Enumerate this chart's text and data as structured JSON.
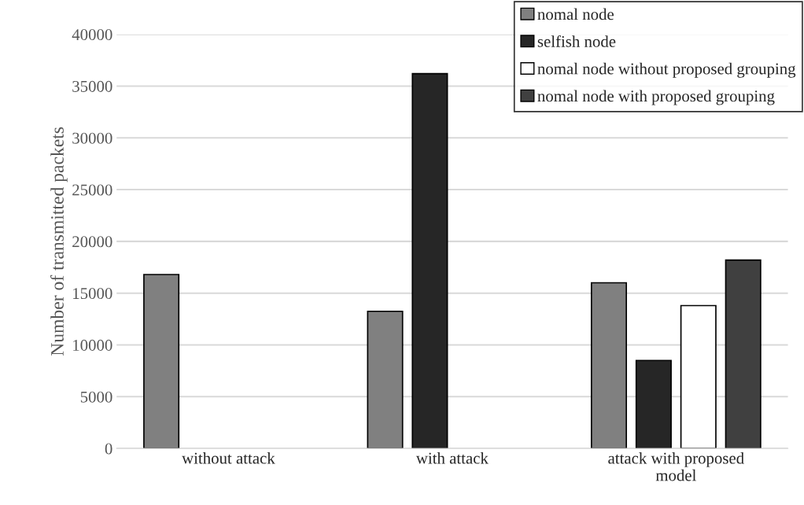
{
  "chart_data": {
    "type": "bar",
    "ylabel": "Number of transmitted packets",
    "categories": [
      "without attack",
      "with attack",
      "attack with proposed\nmodel"
    ],
    "series": [
      {
        "name": "nomal node",
        "color": "#808080",
        "values": [
          16800,
          13250,
          16000
        ]
      },
      {
        "name": "selfish node",
        "color": "#262626",
        "values": [
          null,
          36200,
          8500
        ]
      },
      {
        "name": "nomal node without proposed grouping",
        "color": "#ffffff",
        "values": [
          null,
          null,
          13800
        ]
      },
      {
        "name": "nomal node with proposed grouping",
        "color": "#404040",
        "values": [
          null,
          null,
          18200
        ]
      }
    ],
    "ylim": [
      0,
      40000
    ],
    "yticks": [
      0,
      5000,
      10000,
      15000,
      20000,
      25000,
      30000,
      35000,
      40000
    ],
    "grid": "y",
    "legend": "top right"
  }
}
